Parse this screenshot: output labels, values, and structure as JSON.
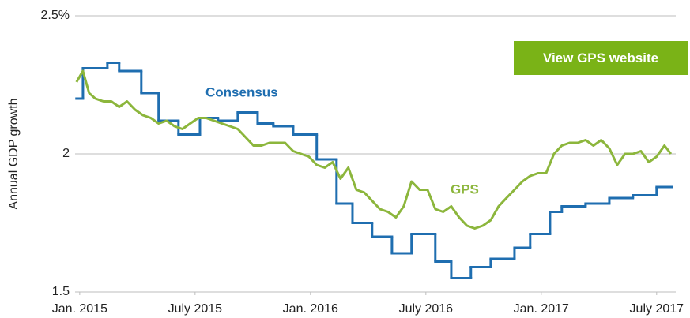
{
  "chart_data": {
    "type": "line",
    "y_label": "Annual GDP growth",
    "ylim": [
      1.5,
      2.5
    ],
    "yticks": [
      {
        "value": 2.5,
        "label": "2.5%"
      },
      2,
      1.5
    ],
    "xlim": [
      2014.98,
      2017.6
    ],
    "xticks": [
      {
        "value": 2015,
        "label": "Jan. 2015"
      },
      {
        "value": 2015.5,
        "label": "July 2015"
      },
      {
        "value": 2016,
        "label": "Jan. 2016"
      },
      {
        "value": 2016.5,
        "label": "July 2016"
      },
      {
        "value": 2017,
        "label": "Jan. 2017"
      },
      {
        "value": 2017.5,
        "label": "July 2017"
      }
    ],
    "grid": true,
    "series": [
      {
        "name": "Consensus",
        "color": "#1f6eb0",
        "step": "post",
        "x": [
          2014.986,
          2015.014,
          2015.12,
          2015.171,
          2015.267,
          2015.342,
          2015.428,
          2015.521,
          2015.599,
          2015.685,
          2015.771,
          2015.839,
          2015.925,
          2016.027,
          2016.113,
          2016.182,
          2016.267,
          2016.353,
          2016.438,
          2016.541,
          2016.61,
          2016.695,
          2016.781,
          2016.884,
          2016.952,
          2017.038,
          2017.089,
          2017.192,
          2017.295,
          2017.397,
          2017.5,
          2017.562
        ],
        "values": [
          2.2,
          2.31,
          2.33,
          2.3,
          2.22,
          2.12,
          2.07,
          2.13,
          2.12,
          2.15,
          2.11,
          2.1,
          2.07,
          1.98,
          1.82,
          1.75,
          1.7,
          1.64,
          1.71,
          1.61,
          1.55,
          1.59,
          1.62,
          1.66,
          1.71,
          1.79,
          1.81,
          1.82,
          1.84,
          1.85,
          1.88,
          1.88
        ]
      },
      {
        "name": "GPS",
        "color": "#8cb63c",
        "x": [
          2014.986,
          2015.014,
          2015.041,
          2015.068,
          2015.103,
          2015.137,
          2015.171,
          2015.205,
          2015.24,
          2015.274,
          2015.308,
          2015.342,
          2015.377,
          2015.411,
          2015.445,
          2015.479,
          2015.514,
          2015.548,
          2015.582,
          2015.616,
          2015.651,
          2015.685,
          2015.719,
          2015.753,
          2015.788,
          2015.822,
          2015.856,
          2015.89,
          2015.925,
          2015.959,
          2015.993,
          2016.027,
          2016.062,
          2016.096,
          2016.13,
          2016.164,
          2016.199,
          2016.233,
          2016.267,
          2016.301,
          2016.336,
          2016.37,
          2016.404,
          2016.438,
          2016.473,
          2016.507,
          2016.541,
          2016.575,
          2016.61,
          2016.644,
          2016.678,
          2016.712,
          2016.747,
          2016.781,
          2016.815,
          2016.849,
          2016.884,
          2016.918,
          2016.952,
          2016.986,
          2017.021,
          2017.055,
          2017.089,
          2017.123,
          2017.158,
          2017.192,
          2017.226,
          2017.26,
          2017.295,
          2017.329,
          2017.363,
          2017.397,
          2017.432,
          2017.466,
          2017.5,
          2017.534,
          2017.562
        ],
        "values": [
          2.26,
          2.3,
          2.22,
          2.2,
          2.19,
          2.19,
          2.17,
          2.19,
          2.16,
          2.14,
          2.13,
          2.11,
          2.12,
          2.1,
          2.09,
          2.11,
          2.13,
          2.13,
          2.12,
          2.11,
          2.1,
          2.09,
          2.06,
          2.03,
          2.03,
          2.04,
          2.04,
          2.04,
          2.01,
          2.0,
          1.99,
          1.96,
          1.95,
          1.97,
          1.91,
          1.95,
          1.87,
          1.86,
          1.83,
          1.8,
          1.79,
          1.77,
          1.81,
          1.9,
          1.87,
          1.87,
          1.8,
          1.79,
          1.81,
          1.77,
          1.74,
          1.73,
          1.74,
          1.76,
          1.81,
          1.84,
          1.87,
          1.9,
          1.92,
          1.93,
          1.93,
          2.0,
          2.03,
          2.04,
          2.04,
          2.05,
          2.03,
          2.05,
          2.02,
          1.96,
          2.0,
          2.0,
          2.01,
          1.97,
          1.99,
          2.03,
          2.0
        ]
      }
    ]
  },
  "button": {
    "label": "View GPS website"
  }
}
